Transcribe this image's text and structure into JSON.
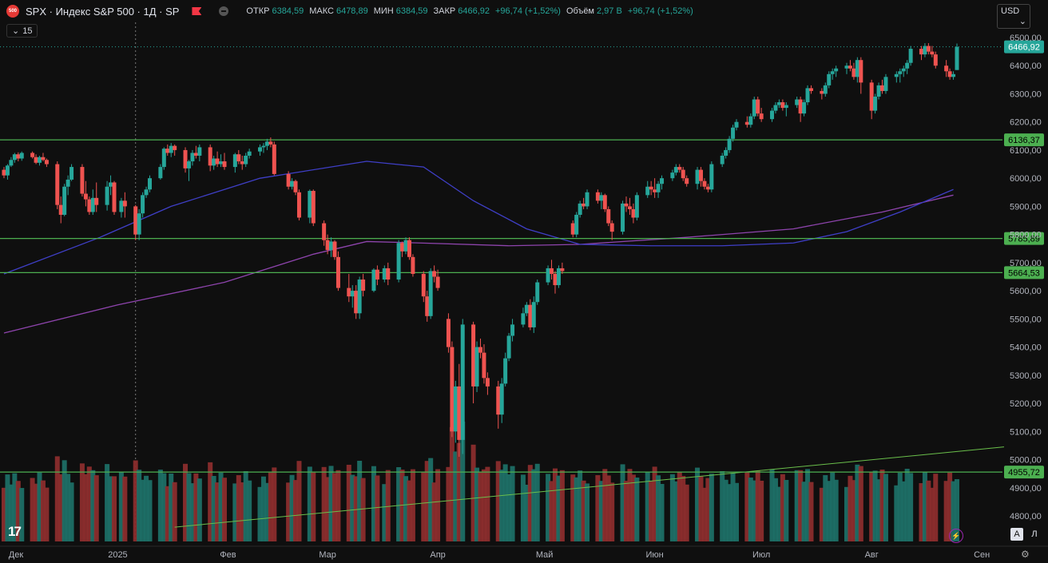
{
  "header": {
    "symbol_badge": "500",
    "title": "SPX · Индекс S&P 500 · 1Д · SP",
    "ohlc": [
      {
        "k": "ОТКР",
        "v": "6384,59"
      },
      {
        "k": "МАКС",
        "v": "6478,89"
      },
      {
        "k": "МИН",
        "v": "6384,59"
      },
      {
        "k": "ЗАКР",
        "v": "6466,92"
      },
      {
        "k": "",
        "v": "+96,74 (+1,52%)"
      },
      {
        "k": "Объём",
        "v": "2,97 B"
      },
      {
        "k": "",
        "v": "+96,74 (+1,52%)"
      }
    ],
    "indicators_count": "15",
    "currency": "USD",
    "logo_text": "17",
    "btn_auto": "A",
    "btn_log": "Л"
  },
  "chart_data": {
    "type": "candlestick",
    "y_ticks": [
      4800,
      4900,
      5000,
      5100,
      5200,
      5300,
      5400,
      5500,
      5600,
      5700,
      5800,
      5900,
      6000,
      6100,
      6200,
      6300,
      6400,
      6500
    ],
    "y_tick_labels": [
      "4800,00",
      "4900,00",
      "5000,00",
      "5100,00",
      "5200,00",
      "5300,00",
      "5400,00",
      "5500,00",
      "5600,00",
      "5700,00",
      "5800,00",
      "5900,00",
      "6000,00",
      "6100,00",
      "6200,00",
      "6300,00",
      "6400,00",
      "6500,00"
    ],
    "x_labels": [
      "Дек",
      "2025",
      "Фев",
      "Мар",
      "Апр",
      "Май",
      "Июн",
      "Июл",
      "Авг",
      "Сен"
    ],
    "x_label_days": [
      -30,
      0,
      31,
      59,
      90,
      120,
      151,
      181,
      212,
      243
    ],
    "x_range_days": [
      -32,
      247
    ],
    "ylim": [
      4760,
      6520
    ],
    "horizontal_levels": [
      {
        "value": 6466.92,
        "label": "6466,92",
        "style": "last-price"
      },
      {
        "value": 6136.37,
        "label": "6136,37",
        "style": "support"
      },
      {
        "value": 5785.89,
        "label": "5785,89",
        "style": "support"
      },
      {
        "value": 5664.53,
        "label": "5664,53",
        "style": "support"
      },
      {
        "value": 4955.72,
        "label": "4955,72",
        "style": "support"
      }
    ],
    "trendline": {
      "from": {
        "day": 16,
        "value": 4760
      },
      "to": {
        "day": 247,
        "value": 5045
      }
    },
    "crosshair_day": 5,
    "ma_blue": [
      [
        -32,
        5660
      ],
      [
        -5,
        5790
      ],
      [
        15,
        5900
      ],
      [
        40,
        6000
      ],
      [
        70,
        6060
      ],
      [
        86,
        6040
      ],
      [
        100,
        5920
      ],
      [
        115,
        5820
      ],
      [
        130,
        5765
      ],
      [
        150,
        5760
      ],
      [
        170,
        5760
      ],
      [
        190,
        5770
      ],
      [
        205,
        5810
      ],
      [
        220,
        5880
      ],
      [
        235,
        5960
      ]
    ],
    "ma_purple": [
      [
        -32,
        5450
      ],
      [
        0,
        5550
      ],
      [
        30,
        5630
      ],
      [
        55,
        5730
      ],
      [
        70,
        5775
      ],
      [
        85,
        5770
      ],
      [
        110,
        5760
      ],
      [
        130,
        5765
      ],
      [
        160,
        5790
      ],
      [
        190,
        5820
      ],
      [
        215,
        5880
      ],
      [
        235,
        5940
      ]
    ],
    "candles": [
      [
        -32,
        6030,
        6040,
        6000,
        6010
      ],
      [
        -31,
        6010,
        6050,
        5995,
        6045
      ],
      [
        -30,
        6045,
        6075,
        6040,
        6065
      ],
      [
        -29,
        6065,
        6090,
        6055,
        6085
      ],
      [
        -28,
        6085,
        6092,
        6060,
        6070
      ],
      [
        -27,
        6070,
        6095,
        6062,
        6090
      ],
      [
        -24,
        6090,
        6095,
        6070,
        6075
      ],
      [
        -23,
        6075,
        6085,
        6050,
        6055
      ],
      [
        -22,
        6055,
        6080,
        6045,
        6075
      ],
      [
        -21,
        6075,
        6090,
        6060,
        6065
      ],
      [
        -20,
        6065,
        6070,
        6040,
        6050
      ],
      [
        -17,
        6050,
        6060,
        5890,
        5905
      ],
      [
        -16,
        5905,
        5935,
        5840,
        5870
      ],
      [
        -15,
        5870,
        5980,
        5865,
        5970
      ],
      [
        -14,
        5970,
        6010,
        5940,
        5995
      ],
      [
        -13,
        5995,
        6050,
        5990,
        6040
      ],
      [
        -10,
        6040,
        6050,
        5935,
        5945
      ],
      [
        -9,
        5945,
        5990,
        5900,
        5925
      ],
      [
        -8,
        5925,
        5935,
        5870,
        5880
      ],
      [
        -7,
        5880,
        5960,
        5870,
        5930
      ],
      [
        -6,
        5930,
        5985,
        5880,
        5905
      ],
      [
        -3,
        5905,
        5990,
        5885,
        5970
      ],
      [
        -2,
        5970,
        6010,
        5940,
        5985
      ],
      [
        -1,
        5985,
        5990,
        5870,
        5880
      ],
      [
        1,
        5880,
        5930,
        5860,
        5920
      ],
      [
        2,
        5920,
        5950,
        5860,
        5900
      ],
      [
        5,
        5900,
        5905,
        5780,
        5800
      ],
      [
        6,
        5800,
        5890,
        5780,
        5875
      ],
      [
        7,
        5875,
        5950,
        5860,
        5940
      ],
      [
        8,
        5940,
        5970,
        5930,
        5960
      ],
      [
        9,
        5960,
        6010,
        5950,
        6000
      ],
      [
        12,
        6000,
        6050,
        5995,
        6040
      ],
      [
        13,
        6040,
        6110,
        6030,
        6105
      ],
      [
        14,
        6105,
        6120,
        6080,
        6090
      ],
      [
        15,
        6090,
        6125,
        6075,
        6115
      ],
      [
        16,
        6115,
        6120,
        6080,
        6100
      ],
      [
        19,
        6100,
        6110,
        6020,
        6035
      ],
      [
        20,
        6035,
        6065,
        5990,
        6060
      ],
      [
        21,
        6060,
        6100,
        6045,
        6090
      ],
      [
        22,
        6090,
        6115,
        6070,
        6080
      ],
      [
        23,
        6080,
        6120,
        6060,
        6110
      ],
      [
        26,
        6110,
        6120,
        6025,
        6045
      ],
      [
        27,
        6045,
        6080,
        6030,
        6070
      ],
      [
        28,
        6070,
        6095,
        6040,
        6050
      ],
      [
        29,
        6050,
        6085,
        6040,
        6060
      ],
      [
        30,
        6060,
        6090,
        6030,
        6040
      ],
      [
        33,
        6040,
        6090,
        6020,
        6085
      ],
      [
        34,
        6085,
        6100,
        6050,
        6060
      ],
      [
        35,
        6060,
        6080,
        6030,
        6050
      ],
      [
        36,
        6050,
        6090,
        6040,
        6080
      ],
      [
        37,
        6080,
        6105,
        6070,
        6095
      ],
      [
        40,
        6095,
        6120,
        6080,
        6110
      ],
      [
        41,
        6110,
        6125,
        6090,
        6115
      ],
      [
        42,
        6115,
        6140,
        6100,
        6130
      ],
      [
        43,
        6130,
        6145,
        6110,
        6120
      ],
      [
        44,
        6120,
        6130,
        6010,
        6015
      ],
      [
        48,
        6015,
        6025,
        5960,
        5970
      ],
      [
        49,
        5970,
        6000,
        5960,
        5990
      ],
      [
        50,
        5990,
        5995,
        5940,
        5950
      ],
      [
        51,
        5950,
        5960,
        5850,
        5860
      ],
      [
        54,
        5860,
        5960,
        5840,
        5955
      ],
      [
        55,
        5955,
        5960,
        5830,
        5840
      ],
      [
        58,
        5840,
        5850,
        5760,
        5780
      ],
      [
        59,
        5780,
        5800,
        5730,
        5745
      ],
      [
        60,
        5745,
        5790,
        5720,
        5775
      ],
      [
        61,
        5775,
        5780,
        5710,
        5720
      ],
      [
        62,
        5720,
        5740,
        5600,
        5610
      ],
      [
        65,
        5610,
        5660,
        5560,
        5580
      ],
      [
        66,
        5580,
        5620,
        5540,
        5600
      ],
      [
        67,
        5600,
        5620,
        5500,
        5520
      ],
      [
        68,
        5520,
        5650,
        5500,
        5640
      ],
      [
        69,
        5640,
        5660,
        5580,
        5600
      ],
      [
        72,
        5600,
        5680,
        5595,
        5675
      ],
      [
        73,
        5675,
        5690,
        5620,
        5640
      ],
      [
        75,
        5640,
        5690,
        5630,
        5680
      ],
      [
        76,
        5680,
        5700,
        5620,
        5640
      ],
      [
        79,
        5640,
        5780,
        5630,
        5770
      ],
      [
        80,
        5770,
        5775,
        5720,
        5740
      ],
      [
        81,
        5740,
        5790,
        5730,
        5780
      ],
      [
        82,
        5780,
        5790,
        5710,
        5720
      ],
      [
        83,
        5720,
        5730,
        5650,
        5660
      ],
      [
        86,
        5660,
        5670,
        5560,
        5580
      ],
      [
        87,
        5580,
        5600,
        5490,
        5510
      ],
      [
        88,
        5510,
        5680,
        5500,
        5670
      ],
      [
        89,
        5670,
        5690,
        5630,
        5650
      ],
      [
        90,
        5650,
        5675,
        5600,
        5610
      ],
      [
        93,
        5500,
        5520,
        5380,
        5400
      ],
      [
        94,
        5400,
        5420,
        5080,
        5100
      ],
      [
        95,
        5100,
        5280,
        5060,
        5260
      ],
      [
        96,
        5260,
        5340,
        5010,
        5070
      ],
      [
        97,
        5070,
        5500,
        5020,
        5480
      ],
      [
        100,
        5480,
        5490,
        5200,
        5260
      ],
      [
        101,
        5260,
        5420,
        5240,
        5400
      ],
      [
        102,
        5400,
        5430,
        5360,
        5380
      ],
      [
        103,
        5380,
        5410,
        5270,
        5290
      ],
      [
        104,
        5290,
        5310,
        5230,
        5260
      ],
      [
        107,
        5260,
        5280,
        5110,
        5160
      ],
      [
        108,
        5160,
        5290,
        5130,
        5270
      ],
      [
        109,
        5270,
        5380,
        5260,
        5360
      ],
      [
        110,
        5360,
        5450,
        5350,
        5440
      ],
      [
        111,
        5440,
        5500,
        5420,
        5480
      ],
      [
        114,
        5480,
        5540,
        5470,
        5520
      ],
      [
        115,
        5520,
        5560,
        5510,
        5550
      ],
      [
        116,
        5550,
        5570,
        5460,
        5470
      ],
      [
        117,
        5470,
        5580,
        5450,
        5560
      ],
      [
        118,
        5560,
        5640,
        5550,
        5630
      ],
      [
        121,
        5630,
        5690,
        5620,
        5680
      ],
      [
        122,
        5680,
        5710,
        5640,
        5660
      ],
      [
        123,
        5660,
        5670,
        5590,
        5620
      ],
      [
        124,
        5620,
        5690,
        5610,
        5680
      ],
      [
        125,
        5680,
        5700,
        5660,
        5670
      ],
      [
        128,
        5840,
        5850,
        5790,
        5800
      ],
      [
        129,
        5800,
        5880,
        5790,
        5870
      ],
      [
        130,
        5870,
        5920,
        5860,
        5910
      ],
      [
        131,
        5910,
        5930,
        5890,
        5900
      ],
      [
        132,
        5900,
        5960,
        5890,
        5950
      ],
      [
        135,
        5950,
        5960,
        5910,
        5920
      ],
      [
        136,
        5920,
        5950,
        5890,
        5940
      ],
      [
        137,
        5940,
        5945,
        5880,
        5890
      ],
      [
        138,
        5890,
        5900,
        5830,
        5840
      ],
      [
        139,
        5840,
        5850,
        5780,
        5810
      ],
      [
        142,
        5810,
        5920,
        5800,
        5910
      ],
      [
        143,
        5910,
        5935,
        5880,
        5900
      ],
      [
        144,
        5900,
        5930,
        5870,
        5890
      ],
      [
        145,
        5890,
        5910,
        5840,
        5860
      ],
      [
        146,
        5860,
        5950,
        5850,
        5940
      ],
      [
        149,
        5940,
        5990,
        5930,
        5970
      ],
      [
        150,
        5970,
        5990,
        5940,
        5960
      ],
      [
        151,
        5960,
        6000,
        5930,
        5950
      ],
      [
        152,
        5950,
        5990,
        5930,
        5980
      ],
      [
        153,
        5980,
        6010,
        5960,
        6000
      ],
      [
        156,
        6000,
        6030,
        5990,
        6020
      ],
      [
        157,
        6020,
        6050,
        6010,
        6040
      ],
      [
        158,
        6040,
        6050,
        6020,
        6030
      ],
      [
        159,
        6030,
        6040,
        5990,
        6000
      ],
      [
        160,
        6000,
        6010,
        5970,
        5980
      ],
      [
        163,
        5980,
        6040,
        5960,
        6030
      ],
      [
        164,
        6030,
        6040,
        5970,
        5990
      ],
      [
        165,
        5990,
        6000,
        5960,
        5970
      ],
      [
        166,
        5970,
        5980,
        5950,
        5960
      ],
      [
        167,
        5960,
        6060,
        5950,
        6050
      ],
      [
        170,
        6050,
        6090,
        6040,
        6080
      ],
      [
        171,
        6080,
        6110,
        6070,
        6100
      ],
      [
        172,
        6100,
        6150,
        6090,
        6140
      ],
      [
        173,
        6140,
        6190,
        6130,
        6180
      ],
      [
        174,
        6180,
        6210,
        6170,
        6200
      ],
      [
        177,
        6200,
        6220,
        6180,
        6190
      ],
      [
        178,
        6190,
        6230,
        6180,
        6220
      ],
      [
        179,
        6220,
        6290,
        6210,
        6280
      ],
      [
        180,
        6280,
        6290,
        6220,
        6230
      ],
      [
        181,
        6230,
        6250,
        6200,
        6210
      ],
      [
        184,
        6210,
        6250,
        6200,
        6240
      ],
      [
        185,
        6240,
        6270,
        6230,
        6260
      ],
      [
        186,
        6260,
        6280,
        6250,
        6270
      ],
      [
        187,
        6270,
        6280,
        6240,
        6250
      ],
      [
        188,
        6250,
        6270,
        6220,
        6260
      ],
      [
        191,
        6260,
        6290,
        6250,
        6280
      ],
      [
        192,
        6280,
        6290,
        6200,
        6230
      ],
      [
        193,
        6230,
        6280,
        6220,
        6270
      ],
      [
        194,
        6270,
        6330,
        6260,
        6320
      ],
      [
        195,
        6320,
        6330,
        6300,
        6310
      ],
      [
        198,
        6310,
        6320,
        6280,
        6300
      ],
      [
        199,
        6300,
        6340,
        6290,
        6330
      ],
      [
        200,
        6330,
        6380,
        6320,
        6370
      ],
      [
        201,
        6370,
        6390,
        6350,
        6380
      ],
      [
        202,
        6380,
        6400,
        6360,
        6390
      ],
      [
        205,
        6390,
        6410,
        6370,
        6400
      ],
      [
        206,
        6400,
        6420,
        6380,
        6390
      ],
      [
        207,
        6390,
        6410,
        6350,
        6360
      ],
      [
        208,
        6360,
        6430,
        6340,
        6420
      ],
      [
        209,
        6420,
        6430,
        6300,
        6340
      ],
      [
        212,
        6340,
        6350,
        6210,
        6240
      ],
      [
        213,
        6240,
        6300,
        6230,
        6290
      ],
      [
        214,
        6290,
        6340,
        6280,
        6330
      ],
      [
        215,
        6330,
        6350,
        6300,
        6310
      ],
      [
        216,
        6310,
        6370,
        6300,
        6360
      ],
      [
        219,
        6360,
        6380,
        6340,
        6370
      ],
      [
        220,
        6370,
        6390,
        6340,
        6380
      ],
      [
        221,
        6380,
        6400,
        6360,
        6390
      ],
      [
        222,
        6390,
        6420,
        6370,
        6410
      ],
      [
        223,
        6410,
        6470,
        6400,
        6460
      ],
      [
        226,
        6460,
        6470,
        6420,
        6440
      ],
      [
        227,
        6440,
        6480,
        6430,
        6470
      ],
      [
        228,
        6470,
        6480,
        6440,
        6450
      ],
      [
        229,
        6450,
        6470,
        6430,
        6440
      ],
      [
        230,
        6440,
        6450,
        6390,
        6400
      ],
      [
        233,
        6400,
        6420,
        6360,
        6380
      ],
      [
        234,
        6380,
        6390,
        6350,
        6360
      ],
      [
        235,
        6360,
        6380,
        6350,
        6370
      ],
      [
        236,
        6384.59,
        6478.89,
        6384.59,
        6466.92
      ]
    ],
    "volume": {
      "ylim": [
        4760,
        6520
      ],
      "base_value": 4760
    }
  }
}
